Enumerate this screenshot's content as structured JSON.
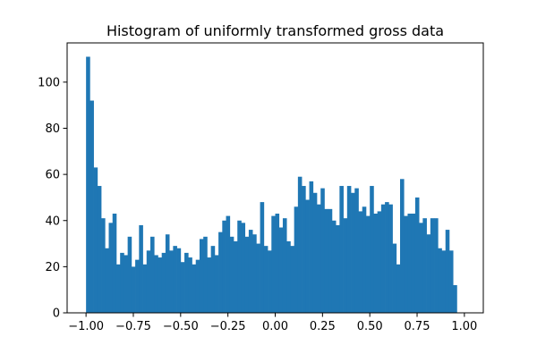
{
  "chart_data": {
    "type": "bar",
    "title": "Histogram of uniformly transformed gross data",
    "xlabel": "",
    "ylabel": "",
    "xlim": [
      -1.1,
      1.1
    ],
    "ylim": [
      0,
      117
    ],
    "bin_start": -1.0,
    "bin_width": 0.02,
    "bar_color": "#1f77b4",
    "grid": false,
    "legend": "none",
    "x_ticks": [
      {
        "value": -1.0,
        "label": "−1.00"
      },
      {
        "value": -0.75,
        "label": "−0.75"
      },
      {
        "value": -0.5,
        "label": "−0.50"
      },
      {
        "value": -0.25,
        "label": "−0.25"
      },
      {
        "value": 0.0,
        "label": "0.00"
      },
      {
        "value": 0.25,
        "label": "0.25"
      },
      {
        "value": 0.5,
        "label": "0.50"
      },
      {
        "value": 0.75,
        "label": "0.75"
      },
      {
        "value": 1.0,
        "label": "1.00"
      }
    ],
    "y_ticks": [
      {
        "value": 0,
        "label": "0"
      },
      {
        "value": 20,
        "label": "20"
      },
      {
        "value": 40,
        "label": "40"
      },
      {
        "value": 60,
        "label": "60"
      },
      {
        "value": 80,
        "label": "80"
      },
      {
        "value": 100,
        "label": "100"
      }
    ],
    "values": [
      111,
      92,
      63,
      55,
      41,
      28,
      39,
      43,
      21,
      26,
      25,
      33,
      20,
      23,
      38,
      21,
      27,
      33,
      25,
      24,
      26,
      34,
      27,
      29,
      28,
      22,
      26,
      24,
      21,
      23,
      32,
      33,
      24,
      29,
      25,
      35,
      40,
      42,
      33,
      31,
      40,
      39,
      33,
      36,
      34,
      30,
      48,
      29,
      27,
      42,
      43,
      37,
      41,
      31,
      29,
      46,
      59,
      55,
      49,
      57,
      52,
      47,
      54,
      45,
      45,
      40,
      38,
      55,
      41,
      55,
      52,
      54,
      44,
      46,
      42,
      55,
      43,
      44,
      47,
      48,
      47,
      30,
      21,
      58,
      42,
      43,
      43,
      50,
      39,
      41,
      34,
      41,
      41,
      28,
      27,
      36,
      27,
      12
    ]
  }
}
